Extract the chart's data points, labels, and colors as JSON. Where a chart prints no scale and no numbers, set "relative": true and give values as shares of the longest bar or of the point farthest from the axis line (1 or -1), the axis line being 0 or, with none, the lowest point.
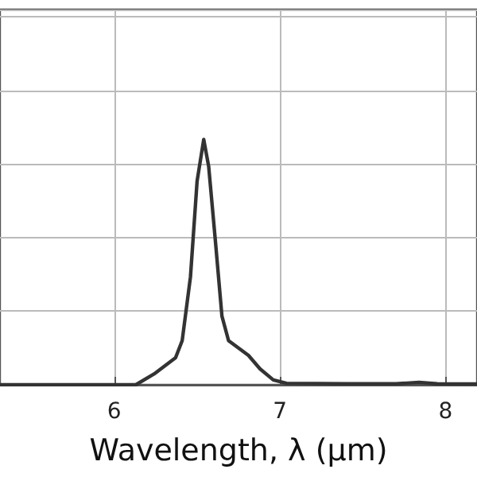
{
  "chart_data": {
    "type": "line",
    "xlabel": "Wavelength, λ (μm)",
    "relative": true,
    "xlim": [
      5.31,
      8.19
    ],
    "xticks": [
      6,
      7,
      8
    ],
    "grid": true,
    "marker": "none",
    "line_style": "solid",
    "series": [
      {
        "color": "#333333",
        "x": [
          5.31,
          6.0,
          6.13,
          6.24,
          6.37,
          6.41,
          6.46,
          6.5,
          6.54,
          6.57,
          6.61,
          6.65,
          6.69,
          6.75,
          6.81,
          6.88,
          6.96,
          7.04,
          7.4,
          7.7,
          7.84,
          7.95,
          8.19
        ],
        "values": [
          0,
          0,
          0,
          0.044,
          0.11,
          0.18,
          0.44,
          0.83,
          1.0,
          0.89,
          0.59,
          0.28,
          0.18,
          0.15,
          0.12,
          0.065,
          0.02,
          0.006,
          0.004,
          0.004,
          0.01,
          0.004,
          0.003
        ]
      }
    ]
  }
}
